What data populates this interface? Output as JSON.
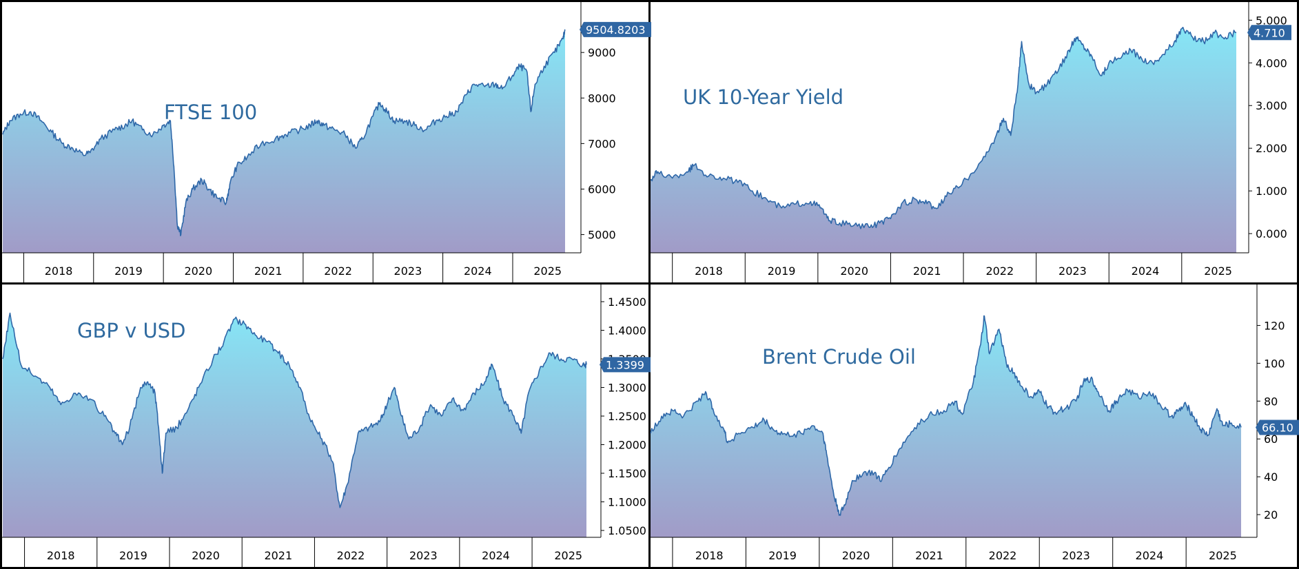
{
  "colors": {
    "line": "#2e67a8",
    "fill_top": "#86e6f6",
    "fill_bottom": "#a19bc7",
    "tag_bg": "#2f66a3",
    "title": "#2f6a9f"
  },
  "chart_data": [
    {
      "type": "area",
      "title": "FTSE 100",
      "x_years": [
        "2018",
        "2019",
        "2020",
        "2021",
        "2022",
        "2023",
        "2024",
        "2025"
      ],
      "x_range": [
        2017.7,
        2025.75
      ],
      "ylim": [
        4600,
        9850
      ],
      "yticks": [
        5000,
        6000,
        7000,
        8000,
        9000
      ],
      "ytick_labels": [
        "5000",
        "6000",
        "7000",
        "8000",
        "9000"
      ],
      "last_value_label": "9504.8203",
      "last_value": 9504.82,
      "series": [
        [
          2017.7,
          7200
        ],
        [
          2017.8,
          7500
        ],
        [
          2017.95,
          7650
        ],
        [
          2018.1,
          7700
        ],
        [
          2018.25,
          7500
        ],
        [
          2018.4,
          7250
        ],
        [
          2018.55,
          7000
        ],
        [
          2018.7,
          6900
        ],
        [
          2018.85,
          6750
        ],
        [
          2018.95,
          6800
        ],
        [
          2019.1,
          7100
        ],
        [
          2019.3,
          7300
        ],
        [
          2019.45,
          7400
        ],
        [
          2019.55,
          7500
        ],
        [
          2019.7,
          7300
        ],
        [
          2019.85,
          7200
        ],
        [
          2020.0,
          7400
        ],
        [
          2020.1,
          7500
        ],
        [
          2020.15,
          6500
        ],
        [
          2020.2,
          5200
        ],
        [
          2020.25,
          5000
        ],
        [
          2020.32,
          5700
        ],
        [
          2020.42,
          6000
        ],
        [
          2020.55,
          6200
        ],
        [
          2020.65,
          6000
        ],
        [
          2020.78,
          5800
        ],
        [
          2020.9,
          5700
        ],
        [
          2020.95,
          6100
        ],
        [
          2021.05,
          6500
        ],
        [
          2021.2,
          6700
        ],
        [
          2021.4,
          7000
        ],
        [
          2021.6,
          7100
        ],
        [
          2021.75,
          7200
        ],
        [
          2021.95,
          7300
        ],
        [
          2022.1,
          7400
        ],
        [
          2022.2,
          7500
        ],
        [
          2022.3,
          7400
        ],
        [
          2022.45,
          7300
        ],
        [
          2022.6,
          7200
        ],
        [
          2022.75,
          6900
        ],
        [
          2022.85,
          7100
        ],
        [
          2023.0,
          7600
        ],
        [
          2023.1,
          7900
        ],
        [
          2023.2,
          7700
        ],
        [
          2023.3,
          7500
        ],
        [
          2023.45,
          7500
        ],
        [
          2023.6,
          7400
        ],
        [
          2023.75,
          7300
        ],
        [
          2023.9,
          7500
        ],
        [
          2024.05,
          7600
        ],
        [
          2024.2,
          7700
        ],
        [
          2024.35,
          8100
        ],
        [
          2024.45,
          8300
        ],
        [
          2024.6,
          8250
        ],
        [
          2024.75,
          8300
        ],
        [
          2024.85,
          8200
        ],
        [
          2025.0,
          8500
        ],
        [
          2025.1,
          8700
        ],
        [
          2025.2,
          8600
        ],
        [
          2025.26,
          7700
        ],
        [
          2025.32,
          8300
        ],
        [
          2025.45,
          8700
        ],
        [
          2025.6,
          9000
        ],
        [
          2025.72,
          9300
        ],
        [
          2025.75,
          9504.8
        ]
      ]
    },
    {
      "type": "area",
      "title": "UK 10-Year Yield",
      "x_years": [
        "2018",
        "2019",
        "2020",
        "2021",
        "2022",
        "2023",
        "2024",
        "2025"
      ],
      "x_range": [
        2017.7,
        2025.75
      ],
      "ylim": [
        -0.45,
        5.15
      ],
      "yticks": [
        0,
        1,
        2,
        3,
        4,
        5
      ],
      "ytick_labels": [
        "0.000",
        "1.000",
        "2.000",
        "3.000",
        "4.000",
        "5.000"
      ],
      "last_value_label": "4.710",
      "last_value": 4.71,
      "series": [
        [
          2017.7,
          1.25
        ],
        [
          2017.8,
          1.45
        ],
        [
          2018.0,
          1.3
        ],
        [
          2018.2,
          1.45
        ],
        [
          2018.3,
          1.6
        ],
        [
          2018.5,
          1.35
        ],
        [
          2018.7,
          1.3
        ],
        [
          2018.9,
          1.2
        ],
        [
          2019.1,
          1.0
        ],
        [
          2019.3,
          0.8
        ],
        [
          2019.5,
          0.6
        ],
        [
          2019.7,
          0.7
        ],
        [
          2019.9,
          0.75
        ],
        [
          2020.05,
          0.6
        ],
        [
          2020.15,
          0.3
        ],
        [
          2020.3,
          0.25
        ],
        [
          2020.5,
          0.2
        ],
        [
          2020.7,
          0.15
        ],
        [
          2020.85,
          0.25
        ],
        [
          2021.0,
          0.35
        ],
        [
          2021.15,
          0.7
        ],
        [
          2021.35,
          0.8
        ],
        [
          2021.5,
          0.7
        ],
        [
          2021.65,
          0.6
        ],
        [
          2021.8,
          0.95
        ],
        [
          2021.95,
          1.1
        ],
        [
          2022.1,
          1.4
        ],
        [
          2022.3,
          1.8
        ],
        [
          2022.45,
          2.3
        ],
        [
          2022.55,
          2.7
        ],
        [
          2022.65,
          2.3
        ],
        [
          2022.75,
          3.5
        ],
        [
          2022.8,
          4.5
        ],
        [
          2022.9,
          3.5
        ],
        [
          2023.0,
          3.3
        ],
        [
          2023.15,
          3.5
        ],
        [
          2023.3,
          3.8
        ],
        [
          2023.45,
          4.3
        ],
        [
          2023.55,
          4.6
        ],
        [
          2023.65,
          4.4
        ],
        [
          2023.75,
          4.2
        ],
        [
          2023.9,
          3.7
        ],
        [
          2024.0,
          4.0
        ],
        [
          2024.15,
          4.1
        ],
        [
          2024.3,
          4.3
        ],
        [
          2024.45,
          4.1
        ],
        [
          2024.6,
          4.0
        ],
        [
          2024.75,
          4.2
        ],
        [
          2024.9,
          4.5
        ],
        [
          2025.0,
          4.8
        ],
        [
          2025.15,
          4.6
        ],
        [
          2025.3,
          4.5
        ],
        [
          2025.45,
          4.7
        ],
        [
          2025.6,
          4.6
        ],
        [
          2025.75,
          4.71
        ]
      ]
    },
    {
      "type": "area",
      "title": "GBP v USD",
      "x_years": [
        "2018",
        "2019",
        "2020",
        "2021",
        "2022",
        "2023",
        "2024",
        "2025"
      ],
      "x_range": [
        2017.7,
        2025.75
      ],
      "ylim": [
        1.038,
        1.468
      ],
      "yticks": [
        1.05,
        1.1,
        1.15,
        1.2,
        1.25,
        1.3,
        1.35,
        1.4,
        1.45
      ],
      "ytick_labels": [
        "1.0500",
        "1.1000",
        "1.1500",
        "1.2000",
        "1.2500",
        "1.3000",
        "1.3500",
        "1.4000",
        "1.4500"
      ],
      "last_value_label": "1.3399",
      "last_value": 1.3399,
      "series": [
        [
          2017.7,
          1.35
        ],
        [
          2017.8,
          1.43
        ],
        [
          2017.95,
          1.34
        ],
        [
          2018.15,
          1.32
        ],
        [
          2018.35,
          1.3
        ],
        [
          2018.5,
          1.27
        ],
        [
          2018.7,
          1.29
        ],
        [
          2018.9,
          1.28
        ],
        [
          2019.1,
          1.25
        ],
        [
          2019.25,
          1.22
        ],
        [
          2019.35,
          1.2
        ],
        [
          2019.45,
          1.23
        ],
        [
          2019.6,
          1.3
        ],
        [
          2019.7,
          1.31
        ],
        [
          2019.8,
          1.29
        ],
        [
          2019.85,
          1.23
        ],
        [
          2019.9,
          1.15
        ],
        [
          2019.95,
          1.22
        ],
        [
          2020.1,
          1.23
        ],
        [
          2020.25,
          1.26
        ],
        [
          2020.4,
          1.3
        ],
        [
          2020.6,
          1.35
        ],
        [
          2020.75,
          1.38
        ],
        [
          2020.9,
          1.42
        ],
        [
          2021.05,
          1.41
        ],
        [
          2021.2,
          1.39
        ],
        [
          2021.35,
          1.38
        ],
        [
          2021.5,
          1.36
        ],
        [
          2021.65,
          1.34
        ],
        [
          2021.8,
          1.3
        ],
        [
          2021.95,
          1.24
        ],
        [
          2022.1,
          1.21
        ],
        [
          2022.25,
          1.17
        ],
        [
          2022.35,
          1.09
        ],
        [
          2022.45,
          1.13
        ],
        [
          2022.6,
          1.22
        ],
        [
          2022.75,
          1.23
        ],
        [
          2022.9,
          1.24
        ],
        [
          2023.0,
          1.27
        ],
        [
          2023.1,
          1.3
        ],
        [
          2023.2,
          1.25
        ],
        [
          2023.3,
          1.21
        ],
        [
          2023.45,
          1.23
        ],
        [
          2023.6,
          1.27
        ],
        [
          2023.75,
          1.25
        ],
        [
          2023.9,
          1.28
        ],
        [
          2024.05,
          1.26
        ],
        [
          2024.2,
          1.29
        ],
        [
          2024.35,
          1.31
        ],
        [
          2024.45,
          1.34
        ],
        [
          2024.6,
          1.28
        ],
        [
          2024.75,
          1.25
        ],
        [
          2024.85,
          1.22
        ],
        [
          2024.95,
          1.29
        ],
        [
          2025.1,
          1.33
        ],
        [
          2025.25,
          1.36
        ],
        [
          2025.4,
          1.35
        ],
        [
          2025.55,
          1.35
        ],
        [
          2025.7,
          1.34
        ],
        [
          2025.75,
          1.3399
        ]
      ]
    },
    {
      "type": "area",
      "title": "Brent Crude Oil",
      "x_years": [
        "2018",
        "2019",
        "2020",
        "2021",
        "2022",
        "2023",
        "2024",
        "2025"
      ],
      "x_range": [
        2017.7,
        2025.75
      ],
      "ylim": [
        8,
        138
      ],
      "yticks": [
        20,
        40,
        60,
        80,
        100,
        120
      ],
      "ytick_labels": [
        "20",
        "40",
        "60",
        "80",
        "100",
        "120"
      ],
      "last_value_label": "66.10",
      "last_value": 66.1,
      "series": [
        [
          2017.7,
          63
        ],
        [
          2017.85,
          72
        ],
        [
          2018.0,
          75
        ],
        [
          2018.15,
          72
        ],
        [
          2018.35,
          80
        ],
        [
          2018.45,
          85
        ],
        [
          2018.55,
          76
        ],
        [
          2018.7,
          65
        ],
        [
          2018.75,
          58
        ],
        [
          2018.9,
          63
        ],
        [
          2019.1,
          66
        ],
        [
          2019.25,
          70
        ],
        [
          2019.4,
          64
        ],
        [
          2019.55,
          62
        ],
        [
          2019.75,
          63
        ],
        [
          2019.9,
          67
        ],
        [
          2020.05,
          63
        ],
        [
          2020.1,
          52
        ],
        [
          2020.2,
          30
        ],
        [
          2020.28,
          20
        ],
        [
          2020.35,
          25
        ],
        [
          2020.45,
          38
        ],
        [
          2020.6,
          42
        ],
        [
          2020.75,
          42
        ],
        [
          2020.85,
          38
        ],
        [
          2020.95,
          45
        ],
        [
          2021.1,
          55
        ],
        [
          2021.3,
          66
        ],
        [
          2021.5,
          73
        ],
        [
          2021.7,
          75
        ],
        [
          2021.85,
          80
        ],
        [
          2021.95,
          73
        ],
        [
          2022.1,
          90
        ],
        [
          2022.2,
          110
        ],
        [
          2022.25,
          125
        ],
        [
          2022.32,
          105
        ],
        [
          2022.45,
          118
        ],
        [
          2022.55,
          100
        ],
        [
          2022.65,
          95
        ],
        [
          2022.75,
          88
        ],
        [
          2022.9,
          82
        ],
        [
          2023.0,
          85
        ],
        [
          2023.1,
          78
        ],
        [
          2023.2,
          74
        ],
        [
          2023.35,
          76
        ],
        [
          2023.5,
          80
        ],
        [
          2023.6,
          90
        ],
        [
          2023.7,
          92
        ],
        [
          2023.8,
          85
        ],
        [
          2023.95,
          75
        ],
        [
          2024.05,
          80
        ],
        [
          2024.2,
          86
        ],
        [
          2024.35,
          82
        ],
        [
          2024.5,
          85
        ],
        [
          2024.65,
          78
        ],
        [
          2024.8,
          72
        ],
        [
          2024.9,
          75
        ],
        [
          2025.0,
          78
        ],
        [
          2025.1,
          72
        ],
        [
          2025.2,
          65
        ],
        [
          2025.3,
          62
        ],
        [
          2025.42,
          76
        ],
        [
          2025.5,
          67
        ],
        [
          2025.6,
          68
        ],
        [
          2025.75,
          66.1
        ]
      ]
    }
  ]
}
